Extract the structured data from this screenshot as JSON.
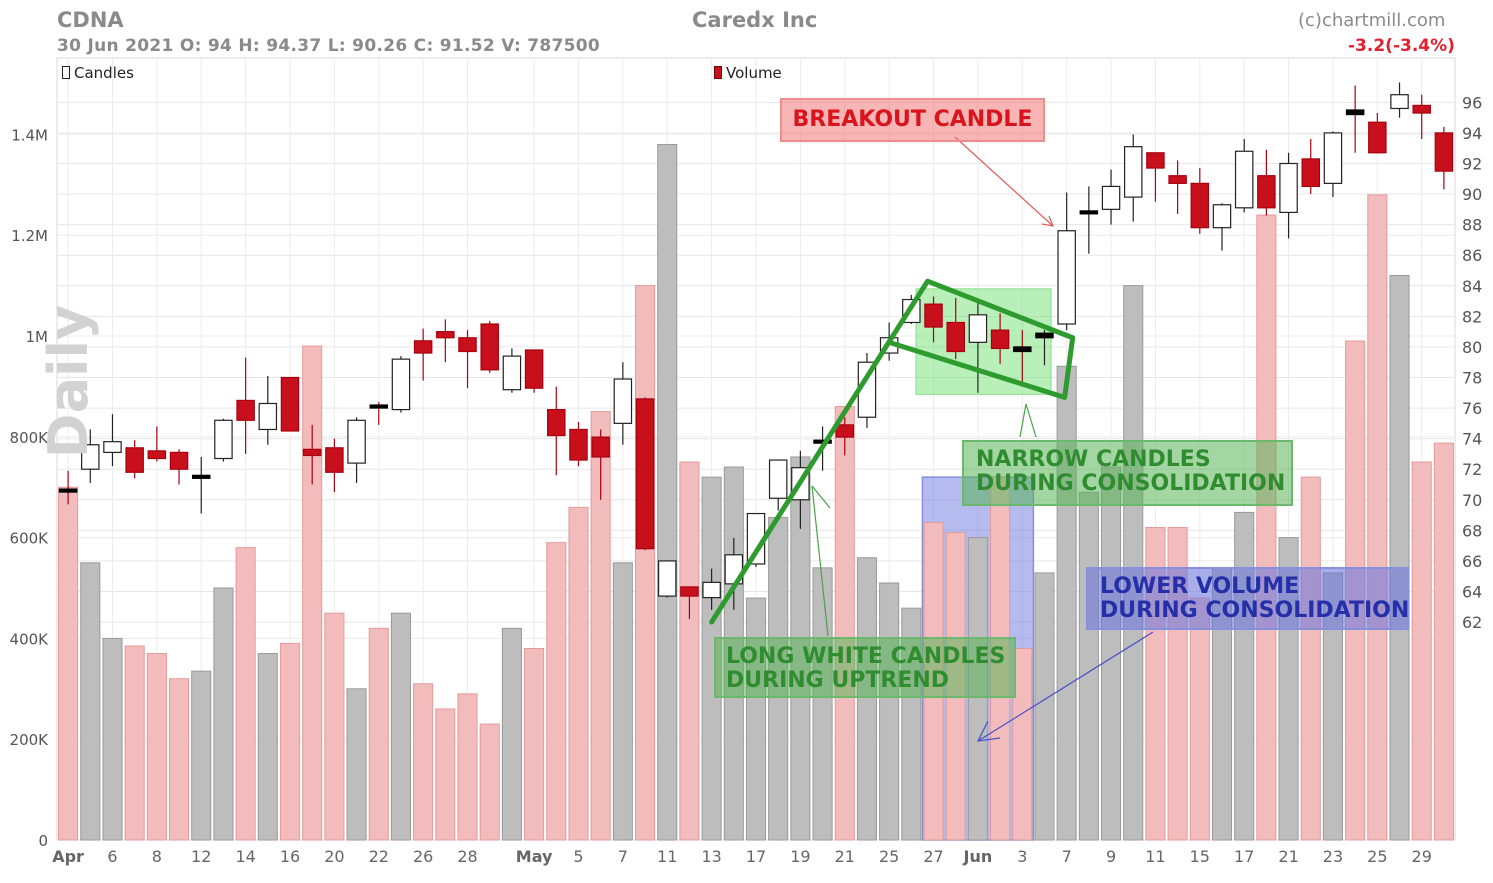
{
  "header": {
    "ticker": "CDNA",
    "company": "Caredx Inc",
    "source": "(c)chartmill.com",
    "quote": "30 Jun 2021   O: 94  H: 94.37  L: 90.26  C: 91.52    V: 787500",
    "change": "-3.2(-3.4%)",
    "watermark": "Daily"
  },
  "legend": {
    "candles": "Candles",
    "volume": "Volume"
  },
  "annotations": {
    "breakout": "BREAKOUT CANDLE",
    "narrow_1": "NARROW CANDLES",
    "narrow_2": "DURING CONSOLIDATION",
    "longwhite_1": "LONG WHITE CANDLES",
    "longwhite_2": "DURING UPTREND",
    "lowvol_1": "LOWER VOLUME",
    "lowvol_2": "DURING CONSOLIDATION"
  },
  "colors": {
    "up": "#ffffff",
    "down": "#c8101c",
    "doji": "#000000",
    "vol_up": "#bdbdbd",
    "vol_down": "#f2bcbc",
    "annot_green": "#2f8d2f",
    "annot_red": "#d9141c",
    "annot_blue": "#2530a8"
  },
  "chart_data": {
    "type": "candlestick",
    "price_axis": {
      "ticks": [
        62,
        64,
        66,
        68,
        70,
        72,
        74,
        76,
        78,
        80,
        82,
        84,
        86,
        88,
        90,
        92,
        94,
        96
      ],
      "range": [
        60.5,
        97.2
      ],
      "side": "right"
    },
    "volume_axis": {
      "ticks": [
        0,
        200000,
        400000,
        600000,
        800000,
        1000000,
        1200000,
        1400000
      ],
      "tick_labels": [
        "0",
        "200K",
        "400K",
        "600K",
        "800K",
        "1M",
        "1.2M",
        "1.4M"
      ],
      "range": [
        0,
        1500000
      ],
      "side": "left"
    },
    "x_tick_labels": [
      {
        "i": 0,
        "label": "Apr",
        "bold": true
      },
      {
        "i": 2,
        "label": "6"
      },
      {
        "i": 4,
        "label": "8"
      },
      {
        "i": 6,
        "label": "12"
      },
      {
        "i": 8,
        "label": "14"
      },
      {
        "i": 10,
        "label": "16"
      },
      {
        "i": 12,
        "label": "20"
      },
      {
        "i": 14,
        "label": "22"
      },
      {
        "i": 16,
        "label": "26"
      },
      {
        "i": 18,
        "label": "28"
      },
      {
        "i": 21,
        "label": "May",
        "bold": true
      },
      {
        "i": 23,
        "label": "5"
      },
      {
        "i": 25,
        "label": "7"
      },
      {
        "i": 27,
        "label": "11"
      },
      {
        "i": 29,
        "label": "13"
      },
      {
        "i": 31,
        "label": "17"
      },
      {
        "i": 33,
        "label": "19"
      },
      {
        "i": 35,
        "label": "21"
      },
      {
        "i": 37,
        "label": "25"
      },
      {
        "i": 39,
        "label": "27"
      },
      {
        "i": 41,
        "label": "Jun",
        "bold": true
      },
      {
        "i": 43,
        "label": "3"
      },
      {
        "i": 45,
        "label": "7"
      },
      {
        "i": 47,
        "label": "9"
      },
      {
        "i": 49,
        "label": "11"
      },
      {
        "i": 51,
        "label": "15"
      },
      {
        "i": 53,
        "label": "17"
      },
      {
        "i": 55,
        "label": "21"
      },
      {
        "i": 57,
        "label": "23"
      },
      {
        "i": 59,
        "label": "25"
      },
      {
        "i": 61,
        "label": "29"
      }
    ],
    "candles": [
      [
        70.7,
        71.9,
        69.7,
        70.6,
        700000
      ],
      [
        72.0,
        74.6,
        71.1,
        73.6,
        550000
      ],
      [
        73.1,
        75.6,
        72.2,
        73.8,
        400000
      ],
      [
        73.4,
        73.9,
        71.4,
        71.8,
        385000
      ],
      [
        73.2,
        74.8,
        72.5,
        72.7,
        370000
      ],
      [
        73.1,
        73.3,
        71.0,
        72.0,
        320000
      ],
      [
        71.5,
        72.8,
        69.1,
        71.6,
        335000
      ],
      [
        72.7,
        75.3,
        72.5,
        75.2,
        500000
      ],
      [
        76.5,
        79.3,
        73.0,
        75.2,
        580000
      ],
      [
        74.6,
        78.1,
        73.6,
        76.3,
        370000
      ],
      [
        78.0,
        78.0,
        74.6,
        74.5,
        390000
      ],
      [
        73.3,
        74.9,
        71.0,
        72.9,
        980000
      ],
      [
        73.4,
        74.0,
        70.5,
        71.8,
        450000
      ],
      [
        72.4,
        75.4,
        71.1,
        75.2,
        300000
      ],
      [
        76.2,
        76.4,
        74.9,
        76.0,
        420000
      ],
      [
        75.9,
        79.4,
        75.7,
        79.2,
        450000
      ],
      [
        80.4,
        81.2,
        77.8,
        79.6,
        310000
      ],
      [
        81.0,
        81.8,
        79.0,
        80.6,
        260000
      ],
      [
        80.6,
        81.1,
        77.3,
        79.7,
        290000
      ],
      [
        81.5,
        81.7,
        78.3,
        78.5,
        230000
      ],
      [
        77.2,
        79.9,
        77.0,
        79.4,
        420000
      ],
      [
        79.8,
        79.8,
        77.0,
        77.3,
        380000
      ],
      [
        75.9,
        77.4,
        71.6,
        74.2,
        590000
      ],
      [
        74.6,
        75.1,
        72.2,
        72.6,
        660000
      ],
      [
        74.1,
        74.6,
        70.0,
        72.8,
        850000
      ],
      [
        75.0,
        79.0,
        73.6,
        77.9,
        550000
      ],
      [
        76.6,
        76.7,
        66.7,
        66.8,
        1100000
      ],
      [
        63.7,
        65.8,
        63.6,
        66.0,
        1380000
      ],
      [
        64.3,
        64.1,
        62.2,
        63.7,
        750000
      ],
      [
        63.6,
        65.5,
        62.8,
        64.6,
        720000
      ],
      [
        64.5,
        67.5,
        62.8,
        66.4,
        740000
      ],
      [
        65.8,
        69.0,
        65.6,
        69.1,
        480000
      ],
      [
        70.1,
        72.5,
        69.3,
        72.6,
        640000
      ],
      [
        70.0,
        73.2,
        68.1,
        72.1,
        760000
      ],
      [
        73.9,
        74.8,
        71.9,
        73.9,
        540000
      ],
      [
        74.9,
        75.4,
        72.9,
        74.1,
        860000
      ],
      [
        75.4,
        79.6,
        74.7,
        79.0,
        560000
      ],
      [
        79.6,
        81.6,
        79.1,
        80.6,
        510000
      ],
      [
        81.6,
        83.4,
        81.5,
        83.1,
        460000
      ],
      [
        82.8,
        83.3,
        80.3,
        81.3,
        630000
      ],
      [
        81.6,
        83.2,
        79.2,
        79.7,
        610000
      ],
      [
        80.3,
        82.9,
        77.0,
        82.1,
        600000
      ],
      [
        81.1,
        82.2,
        78.9,
        79.9,
        720000
      ],
      [
        80.0,
        81.1,
        77.6,
        79.7,
        380000
      ],
      [
        80.6,
        81.1,
        78.8,
        80.9,
        530000
      ],
      [
        81.5,
        90.1,
        81.1,
        87.6,
        940000
      ],
      [
        88.8,
        90.5,
        86.1,
        88.9,
        690000
      ],
      [
        89.0,
        91.6,
        88.0,
        90.5,
        740000
      ],
      [
        89.8,
        93.9,
        88.2,
        93.1,
        1100000
      ],
      [
        92.7,
        92.4,
        89.5,
        91.7,
        620000
      ],
      [
        91.2,
        92.2,
        88.7,
        90.7,
        620000
      ],
      [
        90.7,
        91.7,
        87.4,
        87.8,
        480000
      ],
      [
        87.8,
        89.4,
        86.3,
        89.3,
        540000
      ],
      [
        89.1,
        93.6,
        88.8,
        92.8,
        650000
      ],
      [
        91.2,
        92.9,
        88.6,
        89.1,
        1240000
      ],
      [
        88.8,
        92.7,
        87.1,
        92.0,
        600000
      ],
      [
        92.3,
        93.6,
        90.0,
        90.5,
        720000
      ],
      [
        90.7,
        94.1,
        89.8,
        94.0,
        530000
      ],
      [
        95.5,
        97.1,
        92.7,
        95.2,
        990000
      ],
      [
        94.7,
        95.3,
        92.7,
        92.7,
        1280000
      ],
      [
        95.6,
        97.3,
        95.0,
        96.5,
        1120000
      ],
      [
        95.8,
        96.5,
        93.6,
        95.3,
        750000
      ],
      [
        94.0,
        94.4,
        90.3,
        91.5,
        787500
      ]
    ]
  }
}
